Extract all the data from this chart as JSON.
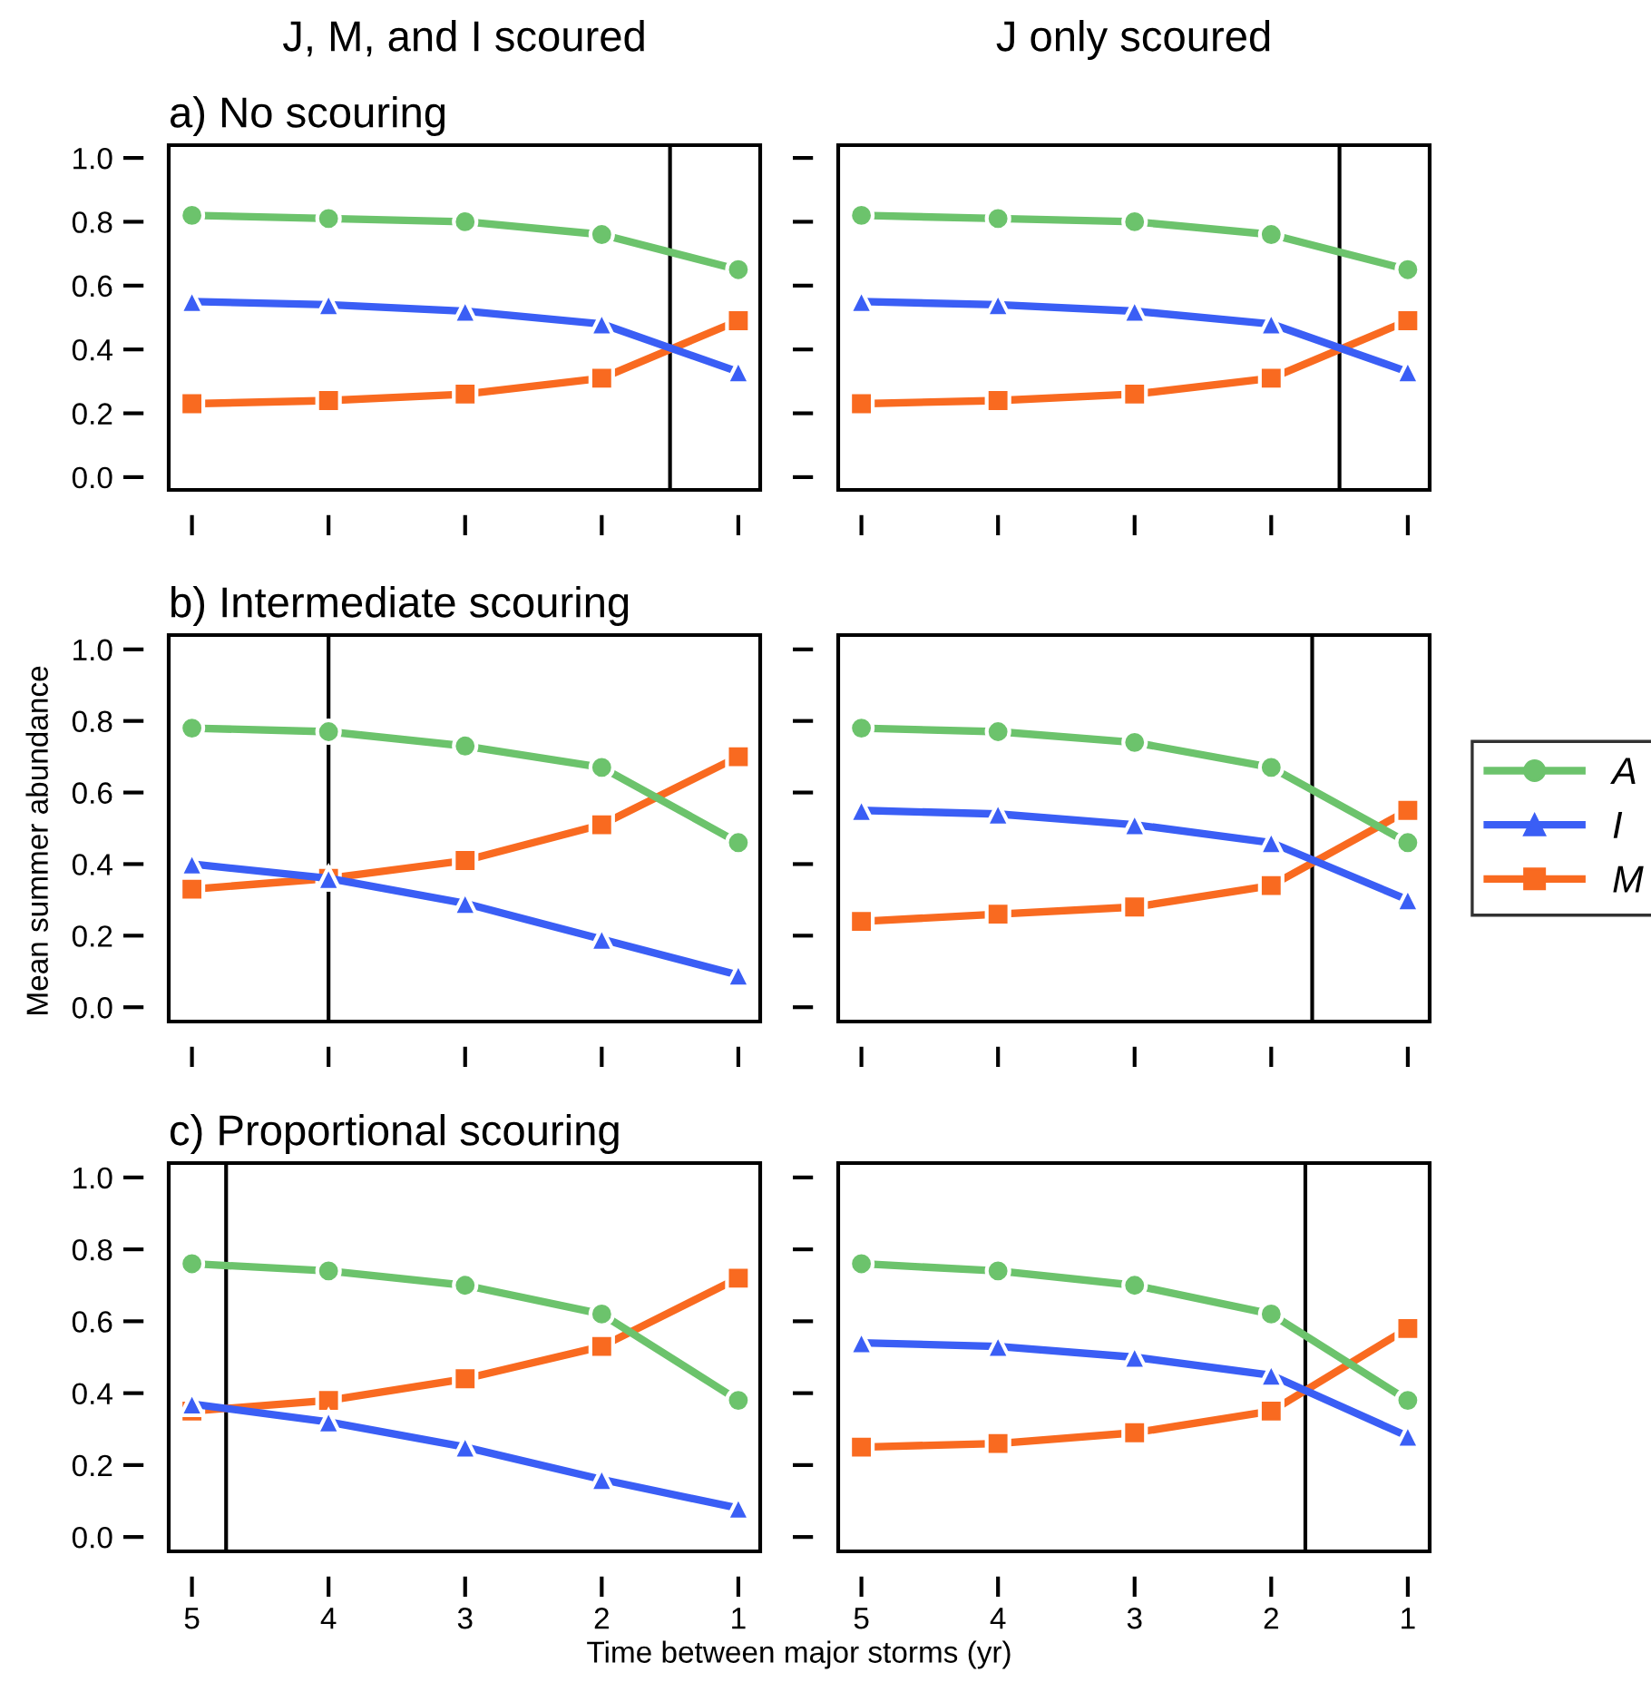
{
  "chart_data": [
    {
      "type": "line",
      "title": "J, M, and I scoured",
      "subtitle": "a) No scouring",
      "x": [
        5,
        4,
        3,
        2,
        1
      ],
      "xlim": [
        5.17,
        0.84
      ],
      "xticks": [
        {
          "value": 5,
          "label": null
        },
        {
          "value": 4,
          "label": null
        },
        {
          "value": 3,
          "label": null
        },
        {
          "value": 2,
          "label": null
        },
        {
          "value": 1,
          "label": null
        }
      ],
      "ylim": [
        -0.04,
        1.04
      ],
      "yticks": [
        {
          "value": 0,
          "label": "0.0"
        },
        0.2,
        0.4,
        0.6,
        0.8,
        {
          "value": 1,
          "label": "1.0"
        }
      ],
      "tick_labels": "y",
      "ref_lines": [
        {
          "axis": "x",
          "value": 1.5,
          "color": "#000000"
        }
      ],
      "series": [
        {
          "color": "#6cc36c",
          "marker": "circle",
          "values": [
            0.82,
            0.81,
            0.8,
            0.76,
            0.65
          ]
        },
        {
          "color": "#3a5ef5",
          "marker": "triangle",
          "values": [
            0.55,
            0.54,
            0.52,
            0.48,
            0.33
          ]
        },
        {
          "color": "#f96a20",
          "marker": "square",
          "values": [
            0.23,
            0.24,
            0.26,
            0.31,
            0.49
          ]
        }
      ]
    },
    {
      "type": "line",
      "title": "J only scoured",
      "x": [
        5,
        4,
        3,
        2,
        1
      ],
      "xlim": [
        5.17,
        0.84
      ],
      "xticks": [
        {
          "value": 5,
          "label": null
        },
        {
          "value": 4,
          "label": null
        },
        {
          "value": 3,
          "label": null
        },
        {
          "value": 2,
          "label": null
        },
        {
          "value": 1,
          "label": null
        }
      ],
      "ylim": [
        -0.04,
        1.04
      ],
      "yticks": [
        {
          "value": 0,
          "label": null
        },
        {
          "value": 0.2,
          "label": null
        },
        {
          "value": 0.4,
          "label": null
        },
        {
          "value": 0.6,
          "label": null
        },
        {
          "value": 0.8,
          "label": null
        },
        {
          "value": 1,
          "label": null
        }
      ],
      "tick_labels": false,
      "ref_lines": [
        {
          "axis": "x",
          "value": 1.5,
          "color": "#000000"
        }
      ],
      "series": [
        {
          "color": "#6cc36c",
          "marker": "circle",
          "values": [
            0.82,
            0.81,
            0.8,
            0.76,
            0.65
          ]
        },
        {
          "color": "#3a5ef5",
          "marker": "triangle",
          "values": [
            0.55,
            0.54,
            0.52,
            0.48,
            0.33
          ]
        },
        {
          "color": "#f96a20",
          "marker": "square",
          "values": [
            0.23,
            0.24,
            0.26,
            0.31,
            0.49
          ]
        }
      ]
    },
    {
      "type": "line",
      "subtitle": "b) Intermediate scouring",
      "ylabel": "Mean summer abundance",
      "x": [
        5,
        4,
        3,
        2,
        1
      ],
      "xlim": [
        5.17,
        0.84
      ],
      "xticks": [
        {
          "value": 5,
          "label": null
        },
        {
          "value": 4,
          "label": null
        },
        {
          "value": 3,
          "label": null
        },
        {
          "value": 2,
          "label": null
        },
        {
          "value": 1,
          "label": null
        }
      ],
      "ylim": [
        -0.04,
        1.04
      ],
      "yticks": [
        {
          "value": 0,
          "label": "0.0"
        },
        0.2,
        0.4,
        0.6,
        0.8,
        {
          "value": 1,
          "label": "1.0"
        }
      ],
      "tick_labels": "y",
      "ref_lines": [
        {
          "axis": "x",
          "value": 4,
          "color": "#000000"
        }
      ],
      "series": [
        {
          "color": "#6cc36c",
          "marker": "circle",
          "values": [
            0.78,
            0.77,
            0.73,
            0.67,
            0.46
          ]
        },
        {
          "color": "#3a5ef5",
          "marker": "triangle",
          "values": [
            0.4,
            0.36,
            0.29,
            0.19,
            0.09
          ]
        },
        {
          "color": "#f96a20",
          "marker": "square",
          "values": [
            0.33,
            0.36,
            0.41,
            0.51,
            0.7
          ]
        }
      ]
    },
    {
      "type": "line",
      "x": [
        5,
        4,
        3,
        2,
        1
      ],
      "xlim": [
        5.17,
        0.84
      ],
      "xticks": [
        {
          "value": 5,
          "label": null
        },
        {
          "value": 4,
          "label": null
        },
        {
          "value": 3,
          "label": null
        },
        {
          "value": 2,
          "label": null
        },
        {
          "value": 1,
          "label": null
        }
      ],
      "ylim": [
        -0.04,
        1.04
      ],
      "yticks": [
        {
          "value": 0,
          "label": null
        },
        {
          "value": 0.2,
          "label": null
        },
        {
          "value": 0.4,
          "label": null
        },
        {
          "value": 0.6,
          "label": null
        },
        {
          "value": 0.8,
          "label": null
        },
        {
          "value": 1,
          "label": null
        }
      ],
      "tick_labels": false,
      "legend": "right",
      "ref_lines": [
        {
          "axis": "x",
          "value": 1.7,
          "color": "#000000"
        }
      ],
      "series": [
        {
          "name": "A",
          "color": "#6cc36c",
          "marker": "circle",
          "values": [
            0.78,
            0.77,
            0.74,
            0.67,
            0.46
          ]
        },
        {
          "name": "I",
          "color": "#3a5ef5",
          "marker": "triangle",
          "values": [
            0.55,
            0.54,
            0.51,
            0.46,
            0.3
          ]
        },
        {
          "name": "M",
          "color": "#f96a20",
          "marker": "square",
          "values": [
            0.24,
            0.26,
            0.28,
            0.34,
            0.55
          ]
        }
      ]
    },
    {
      "type": "line",
      "subtitle": "c) Proportional scouring",
      "xlabel": "Time between major storms (yr)",
      "x": [
        5,
        4,
        3,
        2,
        1
      ],
      "xlim": [
        5.17,
        0.84
      ],
      "xticks": [
        5,
        4,
        3,
        2,
        1
      ],
      "ylim": [
        -0.04,
        1.04
      ],
      "yticks": [
        {
          "value": 0,
          "label": "0.0"
        },
        0.2,
        0.4,
        0.6,
        0.8,
        {
          "value": 1,
          "label": "1.0"
        }
      ],
      "ref_lines": [
        {
          "axis": "x",
          "value": 4.75,
          "color": "#000000"
        }
      ],
      "series": [
        {
          "color": "#6cc36c",
          "marker": "circle",
          "values": [
            0.76,
            0.74,
            0.7,
            0.62,
            0.38
          ]
        },
        {
          "color": "#3a5ef5",
          "marker": "triangle",
          "values": [
            0.37,
            0.32,
            0.25,
            0.16,
            0.08
          ]
        },
        {
          "color": "#f96a20",
          "marker": "square",
          "values": [
            0.35,
            0.38,
            0.44,
            0.53,
            0.72
          ]
        }
      ]
    },
    {
      "type": "line",
      "x": [
        5,
        4,
        3,
        2,
        1
      ],
      "xlim": [
        5.17,
        0.84
      ],
      "xticks": [
        5,
        4,
        3,
        2,
        1
      ],
      "ylim": [
        -0.04,
        1.04
      ],
      "yticks": [
        {
          "value": 0,
          "label": null
        },
        {
          "value": 0.2,
          "label": null
        },
        {
          "value": 0.4,
          "label": null
        },
        {
          "value": 0.6,
          "label": null
        },
        {
          "value": 0.8,
          "label": null
        },
        {
          "value": 1,
          "label": null
        }
      ],
      "tick_labels": "x",
      "ref_lines": [
        {
          "axis": "x",
          "value": 1.75,
          "color": "#000000"
        }
      ],
      "series": [
        {
          "color": "#6cc36c",
          "marker": "circle",
          "values": [
            0.76,
            0.74,
            0.7,
            0.62,
            0.38
          ]
        },
        {
          "color": "#3a5ef5",
          "marker": "triangle",
          "values": [
            0.54,
            0.53,
            0.5,
            0.45,
            0.28
          ]
        },
        {
          "color": "#f96a20",
          "marker": "square",
          "values": [
            0.25,
            0.26,
            0.29,
            0.35,
            0.58
          ]
        }
      ]
    }
  ]
}
